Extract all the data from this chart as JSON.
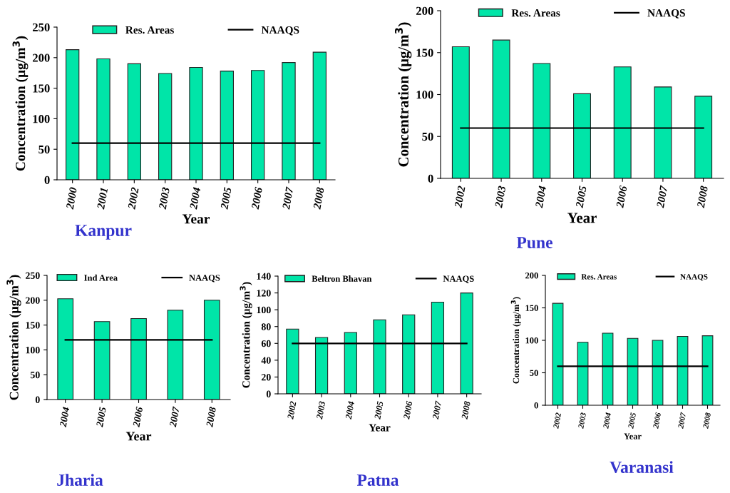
{
  "chart_data": [
    {
      "type": "bar",
      "title": "Kanpur",
      "xlabel": "Year",
      "ylabel": "Concentration (μg/m$^{3}$)",
      "categories": [
        "2000",
        "2001",
        "2002",
        "2003",
        "2004",
        "2005",
        "2006",
        "2007",
        "2008"
      ],
      "series": [
        {
          "name": "Res. Areas",
          "color": "#00e5a8",
          "values": [
            213,
            198,
            190,
            174,
            184,
            178,
            179,
            192,
            209
          ]
        },
        {
          "name": "NAAQS",
          "type": "line",
          "color": "#000000",
          "values": [
            60,
            60,
            60,
            60,
            60,
            60,
            60,
            60,
            60
          ]
        }
      ],
      "ylim": [
        0,
        250
      ],
      "yticks": [
        0,
        50,
        100,
        150,
        200,
        250
      ],
      "legend": "top",
      "grid": false
    },
    {
      "type": "bar",
      "title": "Pune",
      "xlabel": "Year",
      "ylabel": "Concentration (μg/m$^{3}$)",
      "categories": [
        "2002",
        "2003",
        "2004",
        "2005",
        "2006",
        "2007",
        "2008"
      ],
      "series": [
        {
          "name": "Res. Areas",
          "color": "#00e5a8",
          "values": [
            157,
            165,
            137,
            101,
            133,
            109,
            98
          ]
        },
        {
          "name": "NAAQS",
          "type": "line",
          "color": "#000000",
          "values": [
            60,
            60,
            60,
            60,
            60,
            60,
            60
          ]
        }
      ],
      "ylim": [
        0,
        200
      ],
      "yticks": [
        0,
        50,
        100,
        150,
        200
      ],
      "legend": "top",
      "grid": false
    },
    {
      "type": "bar",
      "title": "Jharia",
      "xlabel": "Year",
      "ylabel": "Concentration (μg/m$^{3}$)",
      "categories": [
        "2004",
        "2005",
        "2006",
        "2007",
        "2008"
      ],
      "series": [
        {
          "name": "Ind Area",
          "color": "#00e5a8",
          "values": [
            203,
            157,
            163,
            180,
            200
          ]
        },
        {
          "name": "NAAQS",
          "type": "line",
          "color": "#000000",
          "values": [
            120,
            120,
            120,
            120,
            120
          ]
        }
      ],
      "ylim": [
        0,
        250
      ],
      "yticks": [
        0,
        50,
        100,
        150,
        200,
        250
      ],
      "legend": "top",
      "grid": false
    },
    {
      "type": "bar",
      "title": "Patna",
      "xlabel": "Year",
      "ylabel": "Concentration (μg/m$^{3}$)",
      "categories": [
        "2002",
        "2003",
        "2004",
        "2005",
        "2006",
        "2007",
        "2008"
      ],
      "series": [
        {
          "name": "Beltron Bhavan",
          "color": "#00e5a8",
          "values": [
            77,
            67,
            73,
            88,
            94,
            109,
            120
          ]
        },
        {
          "name": "NAAQS",
          "type": "line",
          "color": "#000000",
          "values": [
            60,
            60,
            60,
            60,
            60,
            60,
            60
          ]
        }
      ],
      "ylim": [
        0,
        140
      ],
      "yticks": [
        0,
        20,
        40,
        60,
        80,
        100,
        120,
        140
      ],
      "legend": "top",
      "grid": false
    },
    {
      "type": "bar",
      "title": "Varanasi",
      "xlabel": "Year",
      "ylabel": "Concentration (μg/m$^{3}$)",
      "categories": [
        "2002",
        "2003",
        "2004",
        "2005",
        "2006",
        "2007",
        "2008"
      ],
      "series": [
        {
          "name": "Res. Areas",
          "color": "#00e5a8",
          "values": [
            157,
            97,
            111,
            103,
            100,
            106,
            107
          ]
        },
        {
          "name": "NAAQS",
          "type": "line",
          "color": "#000000",
          "values": [
            60,
            60,
            60,
            60,
            60,
            60,
            60
          ]
        }
      ],
      "ylim": [
        0,
        200
      ],
      "yticks": [
        0,
        50,
        100,
        150,
        200
      ],
      "legend": "top",
      "grid": false
    }
  ]
}
